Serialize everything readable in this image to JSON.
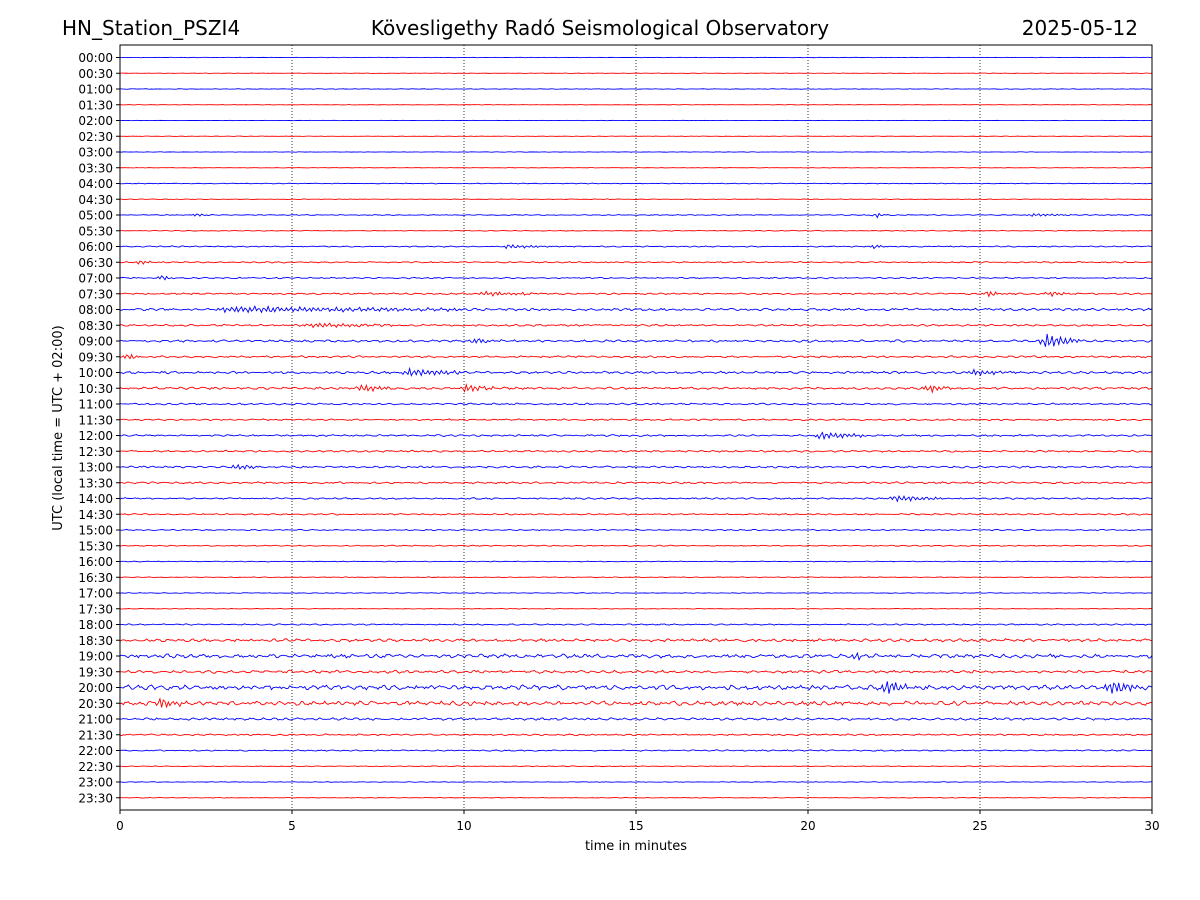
{
  "header": {
    "station": "HN_Station_PSZI4",
    "observatory": "Kövesligethy Radó Seismological Observatory",
    "date": "2025-05-12"
  },
  "chart_data": {
    "type": "line",
    "title": "Kövesligethy Radó Seismological Observatory",
    "xlabel": "time in minutes",
    "ylabel": "UTC (local time = UTC + 02:00)",
    "xlim": [
      0,
      30
    ],
    "xticks": [
      0,
      5,
      10,
      15,
      20,
      25,
      30
    ],
    "grid": "vertical dotted lines every 5 minutes",
    "row_labels": [
      "00:00",
      "00:30",
      "01:00",
      "01:30",
      "02:00",
      "02:30",
      "03:00",
      "03:30",
      "04:00",
      "04:30",
      "05:00",
      "05:30",
      "06:00",
      "06:30",
      "07:00",
      "07:30",
      "08:00",
      "08:30",
      "09:00",
      "09:30",
      "10:00",
      "10:30",
      "11:00",
      "11:30",
      "12:00",
      "12:30",
      "13:00",
      "13:30",
      "14:00",
      "14:30",
      "15:00",
      "15:30",
      "16:00",
      "16:30",
      "17:00",
      "17:30",
      "18:00",
      "18:30",
      "19:00",
      "19:30",
      "20:00",
      "20:30",
      "21:00",
      "21:30",
      "22:00",
      "22:30",
      "23:00",
      "23:30"
    ],
    "series_colors": [
      "#0000ff",
      "#ff0000",
      "#000000"
    ],
    "noise_level": [
      0.3,
      0.3,
      0.4,
      0.3,
      0.2,
      0.3,
      0.3,
      0.3,
      0.5,
      0.4,
      0.6,
      0.5,
      0.8,
      0.9,
      0.9,
      1.1,
      1.6,
      1.3,
      1.5,
      1.3,
      1.6,
      1.6,
      1.2,
      1.1,
      1.2,
      1.2,
      1.3,
      1.3,
      1.1,
      1.0,
      0.8,
      0.7,
      0.5,
      0.5,
      0.5,
      0.4,
      0.9,
      2.0,
      2.6,
      2.0,
      3.2,
      2.8,
      1.6,
      1.1,
      0.9,
      0.5,
      0.4,
      0.4
    ],
    "events": [
      {
        "row": 10,
        "t": 2.2,
        "amp": 2.5,
        "dur": 0.1
      },
      {
        "row": 10,
        "t": 22.0,
        "amp": 3,
        "dur": 0.1
      },
      {
        "row": 10,
        "t": 26.5,
        "amp": 1.5,
        "dur": 0.8
      },
      {
        "row": 12,
        "t": 11.2,
        "amp": 2,
        "dur": 1.0
      },
      {
        "row": 12,
        "t": 21.9,
        "amp": 3,
        "dur": 0.1
      },
      {
        "row": 13,
        "t": 0.5,
        "amp": 2,
        "dur": 0.4
      },
      {
        "row": 14,
        "t": 1.2,
        "amp": 4,
        "dur": 0.1
      },
      {
        "row": 15,
        "t": 10.5,
        "amp": 2,
        "dur": 1.5
      },
      {
        "row": 15,
        "t": 25.2,
        "amp": 3,
        "dur": 0.3
      },
      {
        "row": 15,
        "t": 27.0,
        "amp": 2.5,
        "dur": 0.5
      },
      {
        "row": 16,
        "t": 3.0,
        "amp": 2.5,
        "dur": 6.5
      },
      {
        "row": 17,
        "t": 5.5,
        "amp": 2,
        "dur": 2.0
      },
      {
        "row": 18,
        "t": 26.9,
        "amp": 8,
        "dur": 0.6
      },
      {
        "row": 18,
        "t": 10.2,
        "amp": 3,
        "dur": 0.5
      },
      {
        "row": 19,
        "t": 0.2,
        "amp": 4,
        "dur": 0.2
      },
      {
        "row": 20,
        "t": 8.3,
        "amp": 4,
        "dur": 1.2
      },
      {
        "row": 20,
        "t": 24.8,
        "amp": 3,
        "dur": 0.6
      },
      {
        "row": 21,
        "t": 7.0,
        "amp": 4,
        "dur": 0.5
      },
      {
        "row": 21,
        "t": 10.0,
        "amp": 4,
        "dur": 0.6
      },
      {
        "row": 21,
        "t": 23.5,
        "amp": 5,
        "dur": 0.3
      },
      {
        "row": 24,
        "t": 20.3,
        "amp": 4,
        "dur": 1.0
      },
      {
        "row": 26,
        "t": 3.3,
        "amp": 4,
        "dur": 0.4
      },
      {
        "row": 28,
        "t": 22.5,
        "amp": 3,
        "dur": 1.0
      },
      {
        "row": 38,
        "t": 21.3,
        "amp": 5,
        "dur": 0.3
      },
      {
        "row": 40,
        "t": 22.2,
        "amp": 9,
        "dur": 0.4
      },
      {
        "row": 40,
        "t": 28.7,
        "amp": 9,
        "dur": 0.6
      },
      {
        "row": 41,
        "t": 1.1,
        "amp": 6,
        "dur": 0.4
      }
    ]
  }
}
